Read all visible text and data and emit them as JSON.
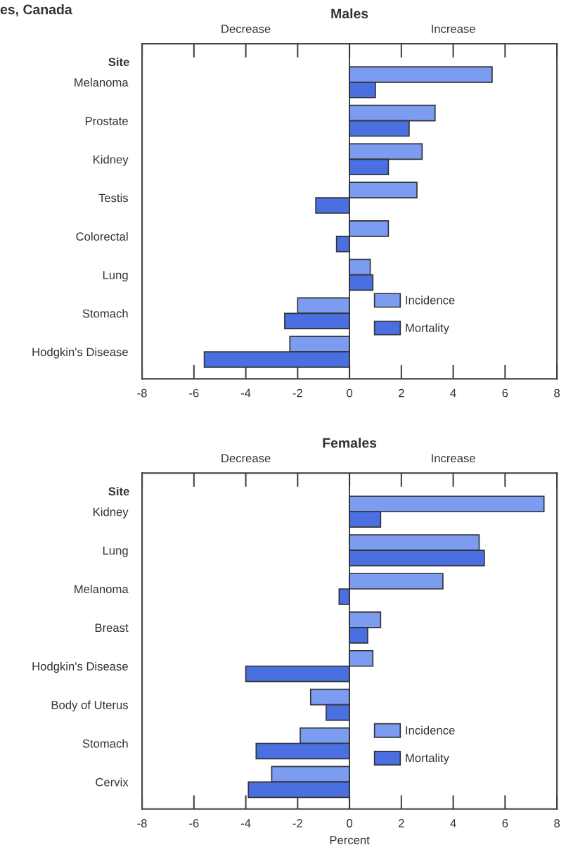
{
  "chart_data": [
    {
      "type": "bar",
      "orientation": "horizontal",
      "title": "Males",
      "ylabel": "Site",
      "annotations": [
        "Decrease",
        "Increase",
        "es, Canada"
      ],
      "categories": [
        "Melanoma",
        "Prostate",
        "Kidney",
        "Testis",
        "Colorectal",
        "Lung",
        "Stomach",
        "Hodgkin's Disease"
      ],
      "series": [
        {
          "name": "Incidence",
          "color": "#7b9cf0",
          "values": [
            5.5,
            3.3,
            2.8,
            2.6,
            1.5,
            0.8,
            -2.0,
            -2.3
          ]
        },
        {
          "name": "Mortality",
          "color": "#4a6fe0",
          "values": [
            1.0,
            2.3,
            1.5,
            -1.3,
            -0.5,
            0.9,
            -2.5,
            -5.6
          ]
        }
      ],
      "xlim": [
        -8,
        8
      ],
      "xticks": [
        -8,
        -6,
        -4,
        -2,
        0,
        2,
        4,
        6,
        8
      ],
      "ref_lines": [
        {
          "axis": "x",
          "value": 0,
          "label": null
        }
      ],
      "legend": "lower right",
      "grid": false
    },
    {
      "type": "bar",
      "orientation": "horizontal",
      "title": "Females",
      "ylabel": "Site",
      "xlabel": "Percent",
      "annotations": [
        "Decrease",
        "Increase"
      ],
      "categories": [
        "Kidney",
        "Lung",
        "Melanoma",
        "Breast",
        "Hodgkin's Disease",
        "Body of Uterus",
        "Stomach",
        "Cervix"
      ],
      "series": [
        {
          "name": "Incidence",
          "color": "#7b9cf0",
          "values": [
            7.5,
            5.0,
            3.6,
            1.2,
            0.9,
            -1.5,
            -1.9,
            -3.0
          ]
        },
        {
          "name": "Mortality",
          "color": "#4a6fe0",
          "values": [
            1.2,
            5.2,
            -0.4,
            0.7,
            -4.0,
            -0.9,
            -3.6,
            -3.9
          ]
        }
      ],
      "xlim": [
        -8,
        8
      ],
      "xticks": [
        -8,
        -6,
        -4,
        -2,
        0,
        2,
        4,
        6,
        8
      ],
      "ref_lines": [
        {
          "axis": "x",
          "value": 0,
          "label": null
        }
      ],
      "legend": "lower right",
      "grid": false
    }
  ]
}
